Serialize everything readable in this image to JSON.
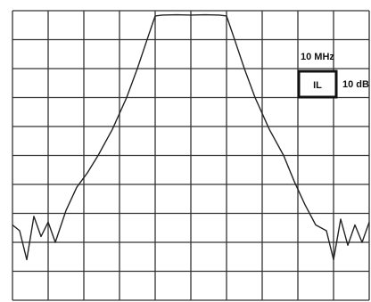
{
  "chart_data": {
    "type": "line",
    "title": "",
    "xlabel": "",
    "ylabel": "",
    "grid": true,
    "x_divisions": 10,
    "y_divisions": 10,
    "scale": {
      "x_per_division": "10 MHz",
      "y_per_division": "10 dB",
      "indicator": "IL"
    },
    "xlim": [
      0,
      10
    ],
    "ylim": [
      -10,
      0
    ],
    "series": [
      {
        "x": [
          0.0,
          0.2,
          0.4,
          0.6,
          0.8,
          1.0,
          1.2,
          1.5,
          1.8,
          2.1,
          2.4,
          2.8,
          3.2,
          3.5,
          3.8,
          4.0,
          4.2,
          4.6,
          5.0,
          5.4,
          5.8,
          6.0,
          6.2,
          6.5,
          6.8,
          7.2,
          7.6,
          7.9,
          8.2,
          8.5,
          8.8,
          9.0,
          9.2,
          9.4,
          9.6,
          9.8,
          10.0
        ],
        "values": [
          -7.4,
          -7.6,
          -8.6,
          -7.1,
          -7.8,
          -7.3,
          -8.0,
          -6.9,
          -6.1,
          -5.6,
          -5.0,
          -4.1,
          -3.0,
          -2.0,
          -0.9,
          -0.18,
          -0.15,
          -0.14,
          -0.15,
          -0.14,
          -0.15,
          -0.18,
          -0.9,
          -2.0,
          -3.0,
          -4.1,
          -5.0,
          -5.9,
          -6.7,
          -7.4,
          -7.6,
          -8.6,
          -7.2,
          -8.1,
          -7.4,
          -8.0,
          -7.3
        ]
      }
    ],
    "colors": {
      "grid": "#333333",
      "trace": "#222222",
      "background": "#ffffff"
    }
  }
}
